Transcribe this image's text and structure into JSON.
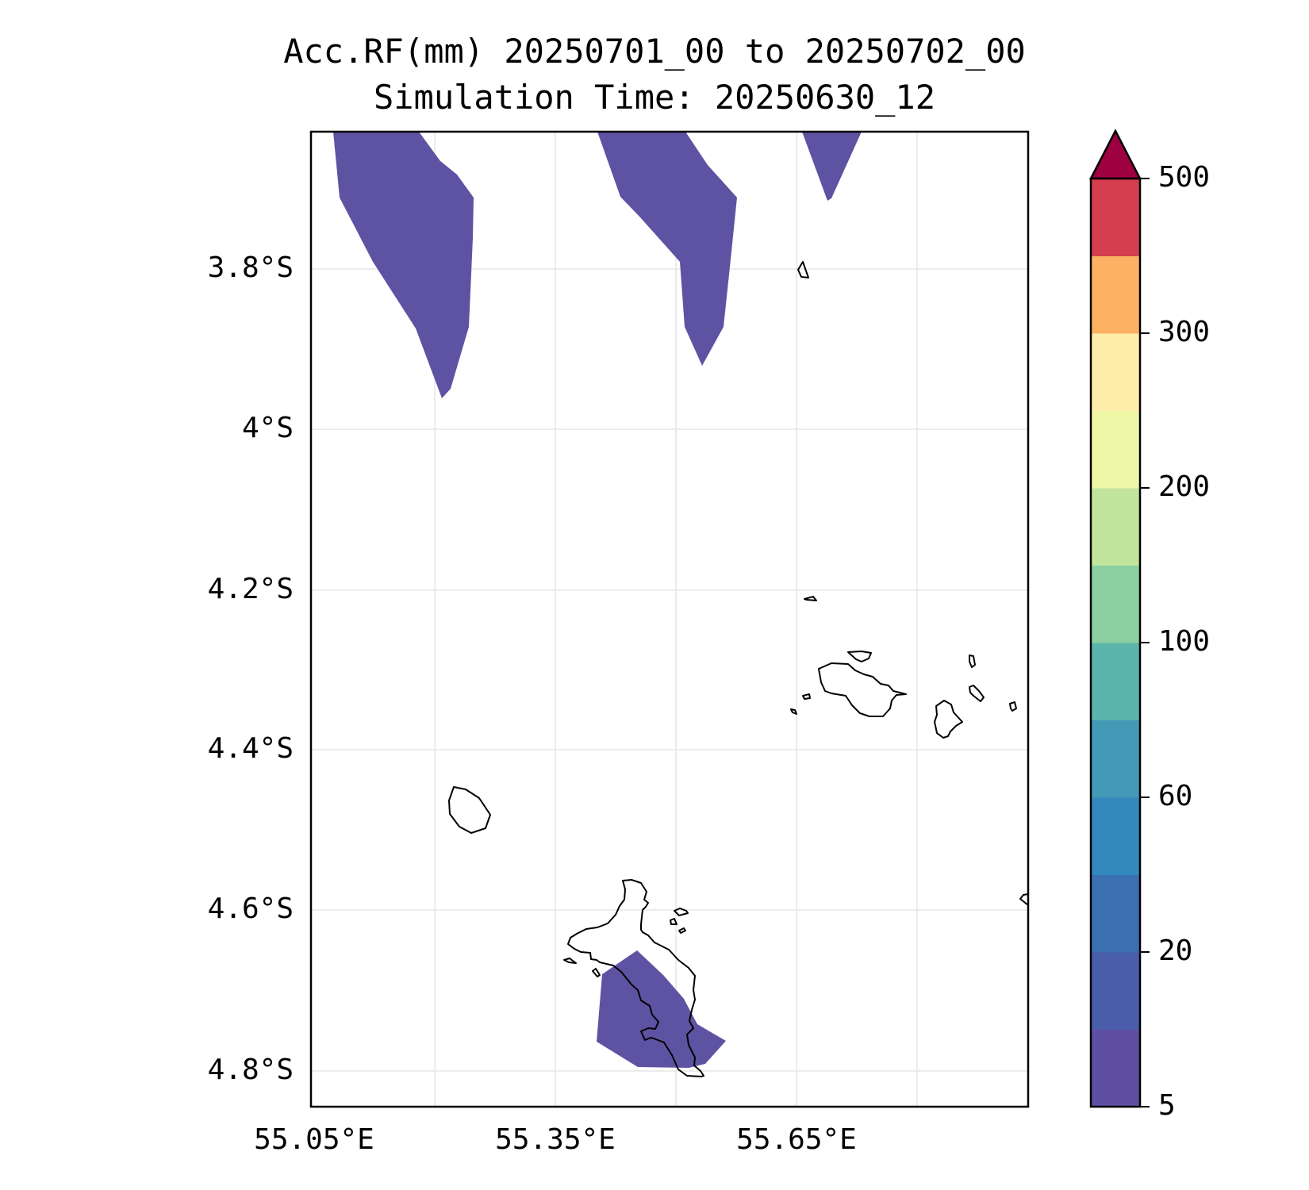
{
  "title": {
    "line1": "Acc.RF(mm) 20250701_00 to 20250702_00",
    "line2": "Simulation Time: 20250630_12"
  },
  "map": {
    "lon_labels": [
      "55.05°E",
      "55.35°E",
      "55.65°E"
    ],
    "lat_labels": [
      "3.8°S",
      "4°S",
      "4.2°S",
      "4.4°S",
      "4.6°S",
      "4.8°S"
    ],
    "gridlines": true,
    "rain_fill_color": "#5e53a3",
    "coastline_color": "#000000"
  },
  "colorbar": {
    "tick_labels": [
      "500",
      "300",
      "200",
      "100",
      "60",
      "20",
      "5"
    ],
    "extend": "max",
    "overflow_color": "#9e0142",
    "colors_bottom_to_top": [
      "#5e4fa2",
      "#4a5daa",
      "#3a6fb1",
      "#3288bd",
      "#4399b6",
      "#5cb5ad",
      "#8bcfa0",
      "#c2e59d",
      "#eef7a6",
      "#fdecaa",
      "#fdb163",
      "#d53e4f"
    ]
  }
}
